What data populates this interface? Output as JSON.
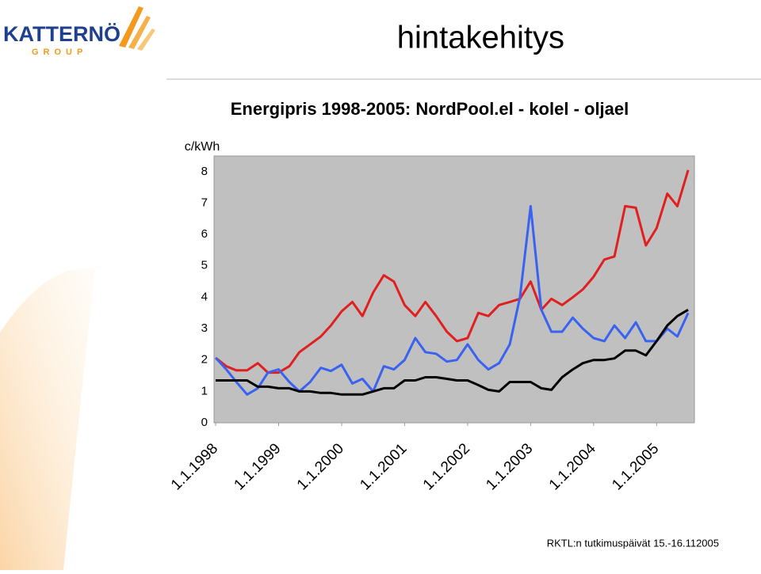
{
  "logo": {
    "name": "KATTERNÖ",
    "sub": "GROUP"
  },
  "header": {
    "title": "hintakehitys"
  },
  "footer": "RKTL:n tutkimuspäivät 15.-16.112005",
  "chart_data": {
    "type": "line",
    "title": "Energipris 1998-2005: NordPool.el - kolel - oljael",
    "y_label": "c/kWh",
    "x": [
      1998,
      1998.17,
      1998.33,
      1998.5,
      1998.67,
      1998.83,
      1999,
      1999.17,
      1999.33,
      1999.5,
      1999.67,
      1999.83,
      2000,
      2000.17,
      2000.33,
      2000.5,
      2000.67,
      2000.83,
      2001,
      2001.17,
      2001.33,
      2001.5,
      2001.67,
      2001.83,
      2002,
      2002.17,
      2002.33,
      2002.5,
      2002.67,
      2002.83,
      2003,
      2003.17,
      2003.33,
      2003.5,
      2003.67,
      2003.83,
      2004,
      2004.17,
      2004.33,
      2004.5,
      2004.67,
      2004.83,
      2005,
      2005.17,
      2005.33,
      2005.5
    ],
    "series": [
      {
        "color": "#e02020",
        "values": [
          2.07,
          1.8,
          1.67,
          1.67,
          1.9,
          1.6,
          1.6,
          1.8,
          2.25,
          2.5,
          2.75,
          3.1,
          3.55,
          3.85,
          3.4,
          4.15,
          4.7,
          4.5,
          3.75,
          3.4,
          3.85,
          3.4,
          2.9,
          2.6,
          2.7,
          3.5,
          3.4,
          3.75,
          3.85,
          3.95,
          4.5,
          3.6,
          3.95,
          3.75,
          4.0,
          4.25,
          4.65,
          5.2,
          5.3,
          6.9,
          6.85,
          5.65,
          6.2,
          7.3,
          6.9,
          8.05
        ]
      },
      {
        "color": "#3a62f0",
        "values": [
          2.07,
          1.7,
          1.3,
          0.9,
          1.1,
          1.6,
          1.7,
          1.3,
          1.0,
          1.3,
          1.75,
          1.65,
          1.85,
          1.25,
          1.4,
          1.0,
          1.8,
          1.7,
          2.0,
          2.7,
          2.25,
          2.2,
          1.95,
          2.0,
          2.5,
          2.0,
          1.7,
          1.9,
          2.5,
          4.0,
          6.9,
          3.6,
          2.9,
          2.9,
          3.35,
          3.0,
          2.7,
          2.6,
          3.1,
          2.7,
          3.2,
          2.6,
          2.6,
          3.0,
          2.75,
          3.5
        ]
      },
      {
        "color": "#000000",
        "values": [
          1.35,
          1.35,
          1.35,
          1.35,
          1.15,
          1.15,
          1.1,
          1.1,
          1.0,
          1.0,
          0.95,
          0.95,
          0.9,
          0.9,
          0.9,
          1.0,
          1.1,
          1.1,
          1.35,
          1.35,
          1.45,
          1.45,
          1.4,
          1.35,
          1.35,
          1.2,
          1.05,
          1.0,
          1.3,
          1.3,
          1.3,
          1.1,
          1.05,
          1.45,
          1.7,
          1.9,
          2.0,
          2.0,
          2.05,
          2.3,
          2.3,
          2.15,
          2.6,
          3.1,
          3.4,
          3.6
        ]
      }
    ],
    "xlim": [
      1998,
      2005.6
    ],
    "xticks": [
      {
        "value": 1998,
        "label": "1.1.1998"
      },
      {
        "value": 1999,
        "label": "1.1.1999"
      },
      {
        "value": 2000,
        "label": "1.1.2000"
      },
      {
        "value": 2001,
        "label": "1.1.2001"
      },
      {
        "value": 2002,
        "label": "1.1.2002"
      },
      {
        "value": 2003,
        "label": "1.1.2003"
      },
      {
        "value": 2004,
        "label": "1.1.2004"
      },
      {
        "value": 2005,
        "label": "1.1.2005"
      }
    ],
    "ylim": [
      0,
      8.5
    ],
    "yticks": [
      0,
      1,
      2,
      3,
      4,
      5,
      6,
      7,
      8
    ],
    "grid": false,
    "plot_background": "#c0c0c0"
  }
}
